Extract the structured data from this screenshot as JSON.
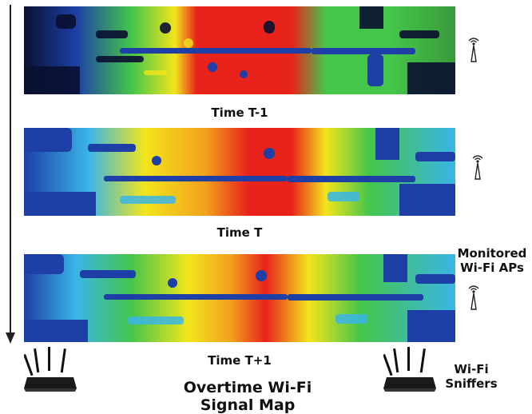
{
  "frames": [
    {
      "label": "Time T-1",
      "palette": "t-1"
    },
    {
      "label": "Time T",
      "palette": "t"
    },
    {
      "label": "Time T+1",
      "palette": "t+1"
    }
  ],
  "labels": {
    "monitored_aps": [
      "Monitored",
      "Wi-Fi APs"
    ],
    "sniffers": [
      "Wi-Fi",
      "Sniffers"
    ],
    "title": [
      "Overtime Wi-Fi",
      "Signal Map"
    ]
  },
  "icons": {
    "ap": "wifi-antenna-icon",
    "sniffer": "router-icon",
    "timeline": "arrow-down-icon"
  },
  "colors": {
    "hot": "#e8231b",
    "warm": "#f2e51c",
    "mid": "#45c64a",
    "cool": "#3ab5e6",
    "cold": "#1d3fa6",
    "deep": "#0a1030"
  }
}
